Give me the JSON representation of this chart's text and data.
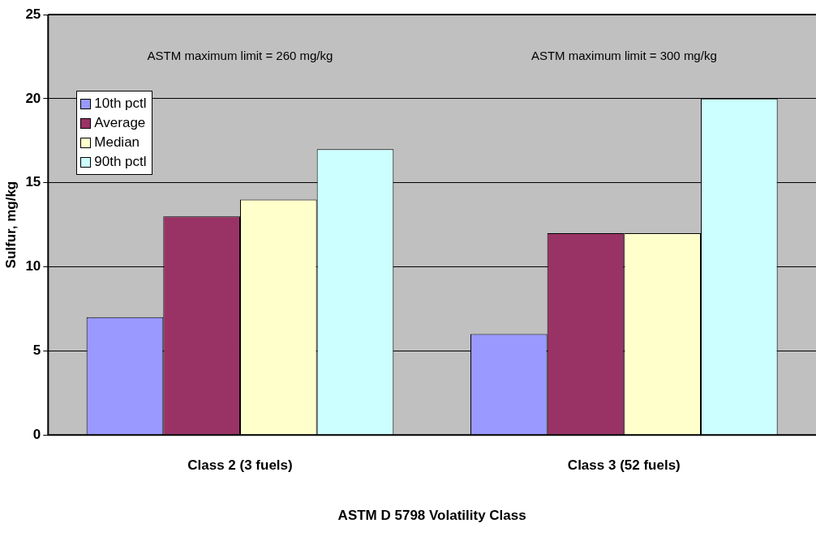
{
  "chart_data": {
    "type": "bar",
    "xlabel": "ASTM D 5798 Volatility Class",
    "ylabel": "Sulfur, mg/kg",
    "categories": [
      "Class 2 (3 fuels)",
      "Class 3 (52 fuels)"
    ],
    "series": [
      {
        "name": "10th pctl",
        "color": "#9999ff",
        "values": [
          7,
          6
        ]
      },
      {
        "name": "Average",
        "color": "#993366",
        "values": [
          13,
          12
        ]
      },
      {
        "name": "Median",
        "color": "#ffffcc",
        "values": [
          14,
          12
        ]
      },
      {
        "name": "90th pctl",
        "color": "#ccffff",
        "values": [
          17,
          20
        ]
      }
    ],
    "annotations": [
      "ASTM maximum limit = 260 mg/kg",
      "ASTM maximum limit = 300 mg/kg"
    ],
    "ylim": [
      0,
      25
    ],
    "yticks": [
      0,
      5,
      10,
      15,
      20,
      25
    ],
    "grid": "y",
    "legend": "top left"
  }
}
